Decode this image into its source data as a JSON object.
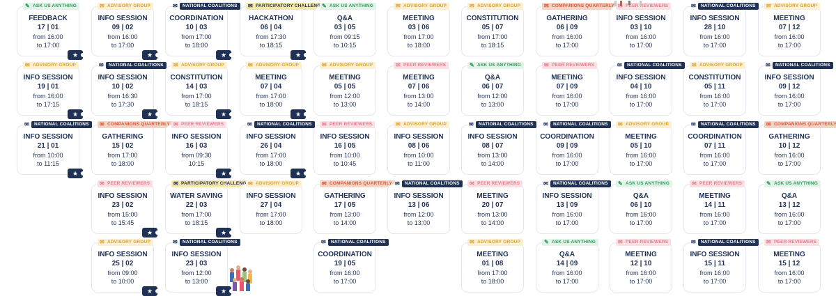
{
  "events": [
    {
      "badge": "Ask us anything",
      "type": "ask",
      "title": "FEEDBACK",
      "date": "17 | 01",
      "from": "from 16:00",
      "to": "to 17:00",
      "ticket": true
    },
    {
      "badge": "Advisory group",
      "type": "adv",
      "title": "INFO SESSION",
      "date": "19 | 01",
      "from": "from 16:00",
      "to": "to 17:15",
      "ticket": true
    },
    {
      "badge": "National coalitions",
      "type": "nat",
      "title": "INFO SESSION",
      "date": "21 | 01",
      "from": "from 10:00",
      "to": "to 11:15",
      "ticket": true
    },
    {
      "badge": "Advisory group",
      "type": "adv",
      "title": "INFO SESSION",
      "date": "09 | 02",
      "from": "from 16:00",
      "to": "to 17:00",
      "ticket": true
    },
    {
      "badge": "National coalitions",
      "type": "nat",
      "title": "INFO SESSION",
      "date": "10 | 02",
      "from": "from 16:30",
      "to": "to 17:30",
      "ticket": true
    },
    {
      "badge": "Companions quarterly",
      "type": "comp",
      "title": "GATHERING",
      "date": "15 | 02",
      "from": "from 17:00",
      "to": "to 18:00",
      "ticket": false
    },
    {
      "badge": "Peer reviewers",
      "type": "peer",
      "title": "INFO SESSION",
      "date": "23 | 02",
      "from": "from 15:00",
      "to": "to 15:45",
      "ticket": true
    },
    {
      "badge": "Advisory group",
      "type": "adv",
      "title": "INFO SESSION",
      "date": "25 | 02",
      "from": "from 09:00",
      "to": "to 10:00",
      "ticket": true
    },
    {
      "badge": "National coalitions",
      "type": "nat",
      "title": "COORDINATION",
      "date": "10 | 03",
      "from": "from 17:00",
      "to": "to 18:00",
      "ticket": true
    },
    {
      "badge": "Advisory group",
      "type": "adv",
      "title": "CONSTITUTION",
      "date": "14 | 03",
      "from": "from 17:00",
      "to": "to 18:15",
      "ticket": true
    },
    {
      "badge": "Peer reviewers",
      "type": "peer",
      "title": "INFO SESSION",
      "date": "16 | 03",
      "from": "from 09:30",
      "to": "10:15",
      "ticket": true
    },
    {
      "badge": "Participatory challenge",
      "type": "par",
      "title": "WATER SAVING",
      "date": "22 | 03",
      "from": "from 17:00",
      "to": "to 18:15",
      "ticket": true
    },
    {
      "badge": "National coalitions",
      "type": "nat",
      "title": "INFO SESSION",
      "date": "23 | 03",
      "from": "from 12:00",
      "to": "to 13:00",
      "ticket": true
    },
    {
      "badge": "Participatory challenge",
      "type": "par",
      "title": "HACKATHON",
      "date": "06 | 04",
      "from": "from 17:30",
      "to": "to 18:15",
      "ticket": true
    },
    {
      "badge": "Advisory group",
      "type": "adv",
      "title": "MEETING",
      "date": "07 | 04",
      "from": "from 17:00",
      "to": "to 18:00",
      "ticket": true
    },
    {
      "badge": "National coalitions",
      "type": "nat",
      "title": "INFO SESSION",
      "date": "26 | 04",
      "from": "from 17:00",
      "to": "to 18:00",
      "ticket": true
    },
    {
      "badge": "Advisory group",
      "type": "adv",
      "title": "INFO SESSION",
      "date": "27 | 04",
      "from": "from 17:00",
      "to": "to 18:00",
      "ticket": false
    },
    {
      "badge": "Ask us anything",
      "type": "ask",
      "title": "Q&A",
      "date": "03 | 05",
      "from": "from 09:15",
      "to": "to 10:15",
      "ticket": false
    },
    {
      "badge": "Advisory group",
      "type": "adv",
      "title": "MEETING",
      "date": "05 | 05",
      "from": "from 12:00",
      "to": "to 13:00",
      "ticket": false
    },
    {
      "badge": "Peer reviewers",
      "type": "peer",
      "title": "INFO SESSION",
      "date": "16 | 05",
      "from": "from 10:00",
      "to": "to 10:45",
      "ticket": false
    },
    {
      "badge": "Companions quarterly",
      "type": "comp",
      "title": "GATHERING",
      "date": "17 | 05",
      "from": "from 13:00",
      "to": "to 14:00",
      "ticket": false
    },
    {
      "badge": "National coalitions",
      "type": "nat",
      "title": "COORDINATION",
      "date": "19 | 05",
      "from": "from 16:00",
      "to": "to 17:00",
      "ticket": false
    },
    {
      "badge": "Advisory group",
      "type": "adv",
      "title": "MEETING",
      "date": "03 | 06",
      "from": "from 17:00",
      "to": "to 18:00",
      "ticket": false
    },
    {
      "badge": "Peer reviewers",
      "type": "peer",
      "title": "MEETING",
      "date": "07 | 06",
      "from": "from 13:00",
      "to": "to 14:00",
      "ticket": false
    },
    {
      "badge": "Advisory group",
      "type": "adv",
      "title": "INFO SESSION",
      "date": "08 | 06",
      "from": "from 10:00",
      "to": "to 11:00",
      "ticket": false
    },
    {
      "badge": "National coalitions",
      "type": "nat",
      "title": "INFO SESSION",
      "date": "13 | 06",
      "from": "from 12:00",
      "to": "to 13:00",
      "ticket": false
    },
    {
      "badge": "Advisory group",
      "type": "adv",
      "title": "CONSTITUTION",
      "date": "05 | 07",
      "from": "from 17:00",
      "to": "to 18:15",
      "ticket": false
    },
    {
      "badge": "Ask us anything",
      "type": "ask",
      "title": "Q&A",
      "date": "06 | 07",
      "from": "from 12:00",
      "to": "to 13:00",
      "ticket": false
    },
    {
      "badge": "National coalitions",
      "type": "nat",
      "title": "INFO SESSION",
      "date": "08 | 07",
      "from": "from 13:00",
      "to": "to 14:00",
      "ticket": false
    },
    {
      "badge": "Peer reviewers",
      "type": "peer",
      "title": "MEETING",
      "date": "20 | 07",
      "from": "from 13:00",
      "to": "to 14:00",
      "ticket": false
    },
    {
      "badge": "Advisory group",
      "type": "adv",
      "title": "MEETING",
      "date": "01 | 08",
      "from": "from 17:00",
      "to": "to 18:00",
      "ticket": false
    },
    {
      "badge": "Companions quarterly",
      "type": "comp",
      "title": "GATHERING",
      "date": "06 | 09",
      "from": "from 16:00",
      "to": "to 17:00",
      "ticket": false
    },
    {
      "badge": "Peer reviewers",
      "type": "peer",
      "title": "MEETING",
      "date": "07 | 09",
      "from": "from 16:00",
      "to": "to 17:00",
      "ticket": false
    },
    {
      "badge": "National coalitions",
      "type": "nat",
      "title": "COORDINATION",
      "date": "09 | 09",
      "from": "from 16:00",
      "to": "to 17:00",
      "ticket": false
    },
    {
      "badge": "National coalitions",
      "type": "nat",
      "title": "INFO SESSION",
      "date": "13 | 09",
      "from": "from 16:00",
      "to": "to 17:00",
      "ticket": false
    },
    {
      "badge": "Ask us anything",
      "type": "ask",
      "title": "Q&A",
      "date": "14 | 09",
      "from": "from 16:00",
      "to": "to 17:00",
      "ticket": false
    },
    {
      "badge": "Peer reviewers",
      "type": "peer",
      "title": "INFO SESSION",
      "date": "03 | 10",
      "from": "from 16:00",
      "to": "to 17:00",
      "ticket": false
    },
    {
      "badge": "National coalitions",
      "type": "nat",
      "title": "INFO SESSION",
      "date": "04 | 10",
      "from": "from 16:00",
      "to": "to 17:00",
      "ticket": false
    },
    {
      "badge": "Advisory group",
      "type": "adv",
      "title": "MEETING",
      "date": "05 | 10",
      "from": "from 16:00",
      "to": "to 17:00",
      "ticket": false
    },
    {
      "badge": "Ask us anything",
      "type": "ask",
      "title": "Q&A",
      "date": "06 | 10",
      "from": "from 16:00",
      "to": "to 17:00",
      "ticket": false
    },
    {
      "badge": "Peer reviewers",
      "type": "peer",
      "title": "MEETING",
      "date": "12 | 10",
      "from": "from 16:00",
      "to": "to 17:00",
      "ticket": false
    },
    {
      "badge": "National coalitions",
      "type": "nat",
      "title": "INFO SESSION",
      "date": "28 | 10",
      "from": "from 16:00",
      "to": "to 17:00",
      "ticket": false
    },
    {
      "badge": "Advisory group",
      "type": "adv",
      "title": "CONSTITUTION",
      "date": "05 | 11",
      "from": "from 16:00",
      "to": "to 17:00",
      "ticket": false
    },
    {
      "badge": "National coalitions",
      "type": "nat",
      "title": "COORDINATION",
      "date": "07 | 11",
      "from": "from 16:00",
      "to": "to 17:00",
      "ticket": false
    },
    {
      "badge": "Peer reviewers",
      "type": "peer",
      "title": "MEETING",
      "date": "14 | 11",
      "from": "from 16:00",
      "to": "to 17:00",
      "ticket": false
    },
    {
      "badge": "National coalitions",
      "type": "nat",
      "title": "INFO SESSION",
      "date": "15 | 11",
      "from": "from 16:00",
      "to": "to 17:00",
      "ticket": false
    },
    {
      "badge": "Advisory group",
      "type": "adv",
      "title": "MEETING",
      "date": "07 | 12",
      "from": "from 16:00",
      "to": "to 17:00",
      "ticket": false
    },
    {
      "badge": "National coalitions",
      "type": "nat",
      "title": "INFO SESSION",
      "date": "09 | 12",
      "from": "from 16:00",
      "to": "to 17:00",
      "ticket": false
    },
    {
      "badge": "Companions quarterly",
      "type": "comp",
      "title": "GATHERING",
      "date": "10 | 12",
      "from": "from 16:00",
      "to": "to 17:00",
      "ticket": false
    },
    {
      "badge": "Ask us anything",
      "type": "ask",
      "title": "Q&A",
      "date": "13 | 12",
      "from": "from 16:00",
      "to": "to 17:00",
      "ticket": false
    },
    {
      "badge": "Peer reviewers",
      "type": "peer",
      "title": "MEETING",
      "date": "15 | 12",
      "from": "from 16:00",
      "to": "to 17:00",
      "ticket": false
    }
  ],
  "ticket_icon": "ticket-icon",
  "colors": {
    "navy": "#1f3154",
    "ask": "#2f9a5a",
    "advisory": "#d9a436",
    "companions": "#d35b3a",
    "peer": "#e07e8e",
    "participatory": "#f6e7a8"
  }
}
